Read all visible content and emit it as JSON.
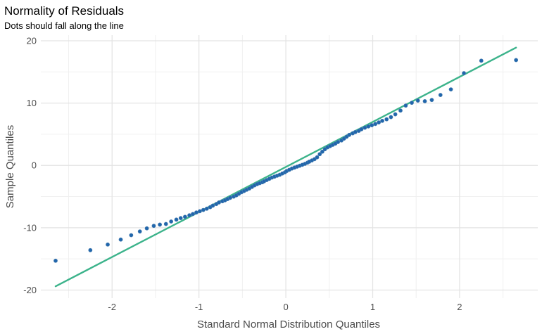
{
  "chart_data": {
    "type": "scatter",
    "title": "Normality of Residuals",
    "subtitle": "Dots should fall along the line",
    "xlabel": "Standard Normal Distribution Quantiles",
    "ylabel": "Sample Quantiles",
    "xlim": [
      -2.82,
      2.9
    ],
    "ylim": [
      -21.3,
      20.9
    ],
    "x_ticks": [
      -2,
      -1,
      0,
      1,
      2
    ],
    "y_ticks": [
      -20,
      -10,
      0,
      10,
      20
    ],
    "x_tick_labels": [
      "-2",
      "-1",
      "0",
      "1",
      "2"
    ],
    "y_tick_labels": [
      "-20",
      "-10",
      "0",
      "10",
      "20"
    ],
    "grid": true,
    "colors": {
      "points": "#2166ac",
      "line": "#3cb38b",
      "grid_major": "#e3e3e3",
      "grid_minor": "#f0f0f0"
    },
    "reference_line": {
      "x": [
        -2.65,
        2.65
      ],
      "y": [
        -19.4,
        18.9
      ]
    },
    "points": [
      [
        -2.65,
        -15.3
      ],
      [
        -2.25,
        -13.6
      ],
      [
        -2.05,
        -12.7
      ],
      [
        -1.9,
        -11.9
      ],
      [
        -1.78,
        -11.2
      ],
      [
        -1.68,
        -10.6
      ],
      [
        -1.6,
        -10.1
      ],
      [
        -1.52,
        -9.7
      ],
      [
        -1.45,
        -9.5
      ],
      [
        -1.38,
        -9.4
      ],
      [
        -1.32,
        -9.0
      ],
      [
        -1.26,
        -8.7
      ],
      [
        -1.21,
        -8.45
      ],
      [
        -1.16,
        -8.25
      ],
      [
        -1.11,
        -8.0
      ],
      [
        -1.07,
        -7.8
      ],
      [
        -1.03,
        -7.55
      ],
      [
        -0.99,
        -7.35
      ],
      [
        -0.95,
        -7.15
      ],
      [
        -0.91,
        -6.95
      ],
      [
        -0.87,
        -6.7
      ],
      [
        -0.84,
        -6.45
      ],
      [
        -0.8,
        -6.2
      ],
      [
        -0.77,
        -5.95
      ],
      [
        -0.73,
        -5.75
      ],
      [
        -0.7,
        -5.6
      ],
      [
        -0.67,
        -5.4
      ],
      [
        -0.64,
        -5.2
      ],
      [
        -0.6,
        -5.0
      ],
      [
        -0.57,
        -4.8
      ],
      [
        -0.54,
        -4.55
      ],
      [
        -0.51,
        -4.3
      ],
      [
        -0.48,
        -4.1
      ],
      [
        -0.45,
        -3.9
      ],
      [
        -0.42,
        -3.7
      ],
      [
        -0.39,
        -3.45
      ],
      [
        -0.36,
        -3.2
      ],
      [
        -0.33,
        -3.0
      ],
      [
        -0.3,
        -2.85
      ],
      [
        -0.27,
        -2.7
      ],
      [
        -0.25,
        -2.55
      ],
      [
        -0.22,
        -2.35
      ],
      [
        -0.19,
        -2.15
      ],
      [
        -0.16,
        -1.95
      ],
      [
        -0.13,
        -1.8
      ],
      [
        -0.1,
        -1.65
      ],
      [
        -0.07,
        -1.5
      ],
      [
        -0.04,
        -1.3
      ],
      [
        -0.01,
        -1.1
      ],
      [
        0.01,
        -0.9
      ],
      [
        0.04,
        -0.7
      ],
      [
        0.07,
        -0.5
      ],
      [
        0.1,
        -0.35
      ],
      [
        0.13,
        -0.2
      ],
      [
        0.16,
        -0.05
      ],
      [
        0.19,
        0.1
      ],
      [
        0.22,
        0.25
      ],
      [
        0.25,
        0.45
      ],
      [
        0.27,
        0.6
      ],
      [
        0.3,
        0.8
      ],
      [
        0.33,
        1.0
      ],
      [
        0.36,
        1.3
      ],
      [
        0.39,
        1.8
      ],
      [
        0.42,
        2.2
      ],
      [
        0.45,
        2.6
      ],
      [
        0.48,
        2.9
      ],
      [
        0.51,
        3.1
      ],
      [
        0.54,
        3.3
      ],
      [
        0.57,
        3.5
      ],
      [
        0.6,
        3.75
      ],
      [
        0.64,
        4.0
      ],
      [
        0.67,
        4.3
      ],
      [
        0.7,
        4.6
      ],
      [
        0.73,
        4.9
      ],
      [
        0.77,
        5.15
      ],
      [
        0.8,
        5.35
      ],
      [
        0.84,
        5.55
      ],
      [
        0.87,
        5.8
      ],
      [
        0.91,
        6.05
      ],
      [
        0.95,
        6.25
      ],
      [
        0.99,
        6.45
      ],
      [
        1.03,
        6.65
      ],
      [
        1.07,
        6.9
      ],
      [
        1.11,
        7.15
      ],
      [
        1.16,
        7.4
      ],
      [
        1.21,
        7.75
      ],
      [
        1.26,
        8.2
      ],
      [
        1.32,
        8.8
      ],
      [
        1.38,
        9.6
      ],
      [
        1.45,
        10.05
      ],
      [
        1.52,
        10.4
      ],
      [
        1.6,
        10.3
      ],
      [
        1.68,
        10.5
      ],
      [
        1.78,
        11.3
      ],
      [
        1.9,
        12.2
      ],
      [
        2.05,
        14.8
      ],
      [
        2.25,
        16.8
      ],
      [
        2.65,
        16.9
      ]
    ]
  }
}
